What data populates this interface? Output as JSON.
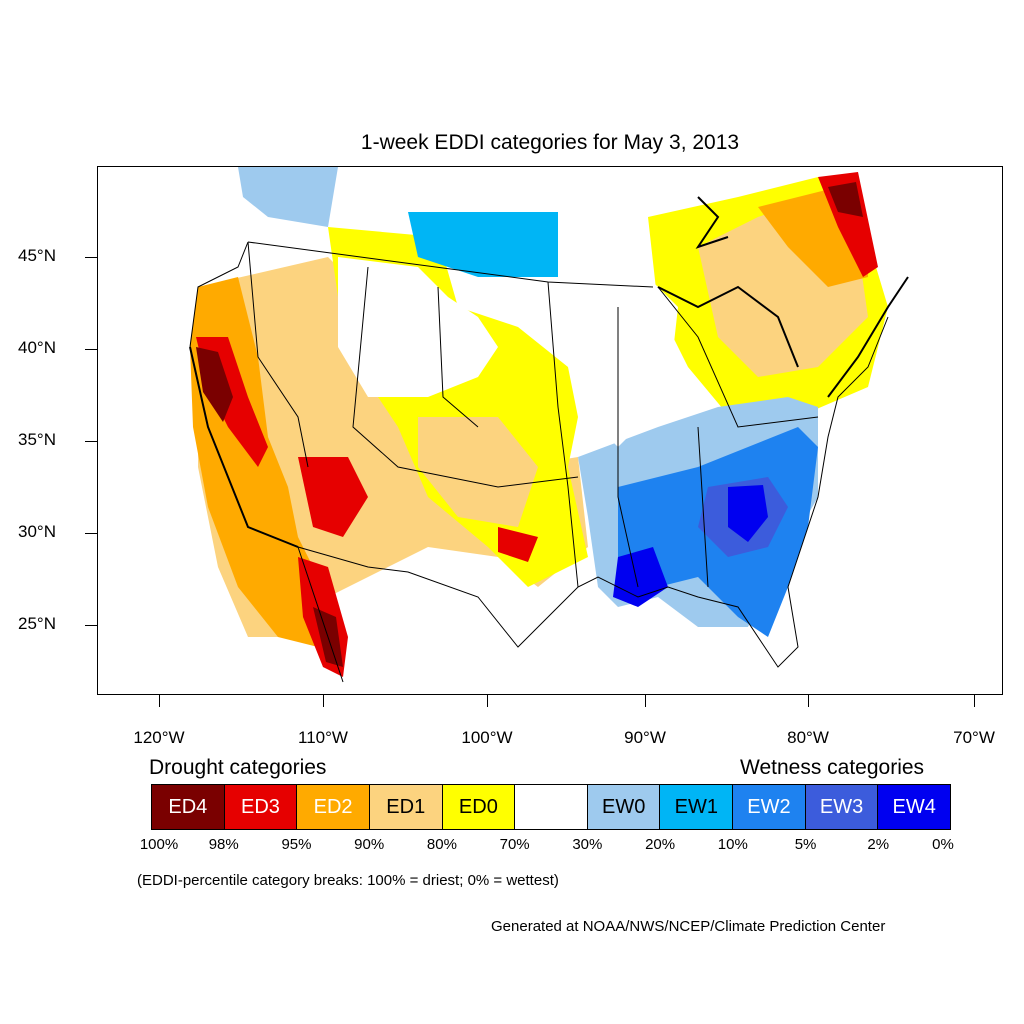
{
  "title": "1-week EDDI categories for May 3, 2013",
  "map": {
    "latitude_labels": [
      "45°N",
      "40°N",
      "35°N",
      "30°N",
      "25°N"
    ],
    "longitude_labels": [
      "120°W",
      "110°W",
      "100°W",
      "90°W",
      "80°W",
      "70°W"
    ]
  },
  "legend": {
    "drought_title": "Drought categories",
    "wetness_title": "Wetness categories",
    "categories": [
      {
        "label": "ED4",
        "color": "#7a0000",
        "text_color": "#ffffff"
      },
      {
        "label": "ED3",
        "color": "#e60000",
        "text_color": "#ffffff"
      },
      {
        "label": "ED2",
        "color": "#ffaa00",
        "text_color": "#ffffff"
      },
      {
        "label": "ED1",
        "color": "#fcd37f",
        "text_color": "#000000"
      },
      {
        "label": "ED0",
        "color": "#ffff00",
        "text_color": "#000000"
      },
      {
        "label": "",
        "color": "#ffffff",
        "text_color": "#000000"
      },
      {
        "label": "EW0",
        "color": "#9ecaee",
        "text_color": "#000000"
      },
      {
        "label": "EW1",
        "color": "#00b5f5",
        "text_color": "#000000"
      },
      {
        "label": "EW2",
        "color": "#1e82f0",
        "text_color": "#ffffff"
      },
      {
        "label": "EW3",
        "color": "#3c5cdc",
        "text_color": "#ffffff"
      },
      {
        "label": "EW4",
        "color": "#0000f0",
        "text_color": "#ffffff"
      }
    ],
    "percentiles": [
      "100%",
      "98%",
      "95%",
      "90%",
      "80%",
      "70%",
      "30%",
      "20%",
      "10%",
      "5%",
      "2%",
      "0%"
    ]
  },
  "note": "(EDDI-percentile category breaks: 100% = driest; 0% = wettest)",
  "credit": "Generated at NOAA/NWS/NCEP/Climate Prediction Center"
}
